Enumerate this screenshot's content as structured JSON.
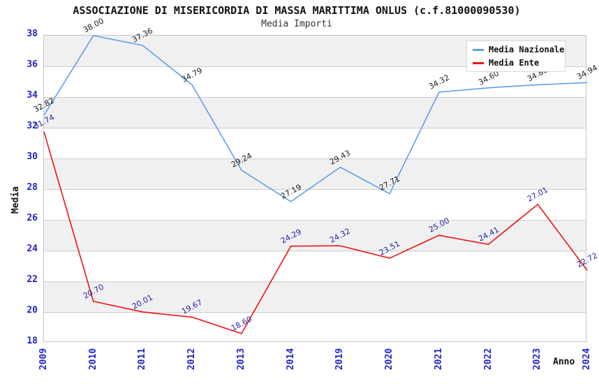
{
  "chart_data": {
    "type": "line",
    "title": "ASSOCIAZIONE DI MISERICORDIA DI MASSA MARITTIMA ONLUS (c.f.81000090530)",
    "subtitle": "Media Importi",
    "xlabel": "Anno",
    "ylabel": "Media",
    "x_categories": [
      "2009",
      "2010",
      "2011",
      "2012",
      "2013",
      "2014",
      "2019",
      "2020",
      "2021",
      "2022",
      "2023",
      "2024"
    ],
    "ylim": [
      18,
      38
    ],
    "y_ticks": [
      18,
      20,
      22,
      24,
      26,
      28,
      30,
      32,
      34,
      36,
      38
    ],
    "grid": "horizontal-bands",
    "legend_position": "top-right",
    "series": [
      {
        "name": "Media Nazionale",
        "color": "#5f9fe8",
        "label_color": "#1a1a1a",
        "values": [
          32.82,
          38.0,
          37.36,
          34.79,
          29.24,
          27.19,
          29.43,
          27.71,
          34.32,
          34.6,
          34.8,
          34.94
        ]
      },
      {
        "name": "Media Ente",
        "color": "#ee1111",
        "label_color": "#2222aa",
        "values": [
          31.74,
          20.7,
          20.01,
          19.67,
          18.6,
          24.29,
          24.32,
          23.51,
          25.0,
          24.41,
          27.01,
          22.72
        ]
      }
    ],
    "colors": {
      "tick_labels": "#2323cc",
      "gridline": "#cccccc",
      "band": "#f0f0f0",
      "plot_border": "#c4c4c4"
    }
  }
}
